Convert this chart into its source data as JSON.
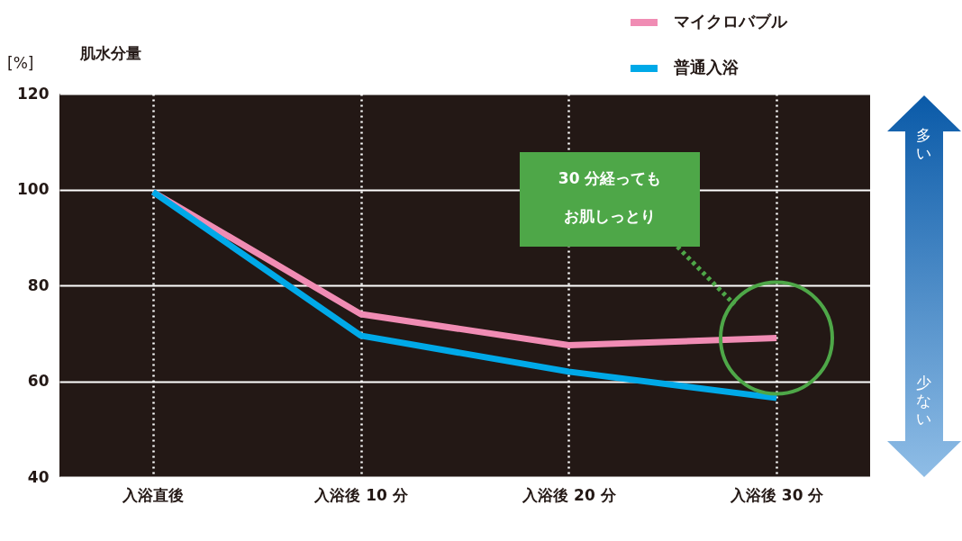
{
  "chart_data": {
    "type": "line",
    "ylabel": "肌水分量",
    "categories": [
      "入浴直後",
      "入浴後 10 分",
      "入浴後 20 分",
      "入浴後 30 分"
    ],
    "series": [
      {
        "name": "マイクロバブル",
        "color": "#f08cb4",
        "values": [
          99.5,
          74,
          67.5,
          69
        ]
      },
      {
        "name": "普通入浴",
        "color": "#00a9e8",
        "values": [
          99.5,
          69.5,
          62,
          56.5
        ]
      }
    ],
    "ylim": [
      40,
      120
    ],
    "yticks": [
      40,
      60,
      80,
      100,
      120
    ],
    "grid": true,
    "legend": "top right",
    "marker": "none",
    "line_style": "solid",
    "annotations": [
      "[%]",
      "30 分経っても",
      "お肌しっとり",
      "多い",
      "少ない"
    ]
  }
}
